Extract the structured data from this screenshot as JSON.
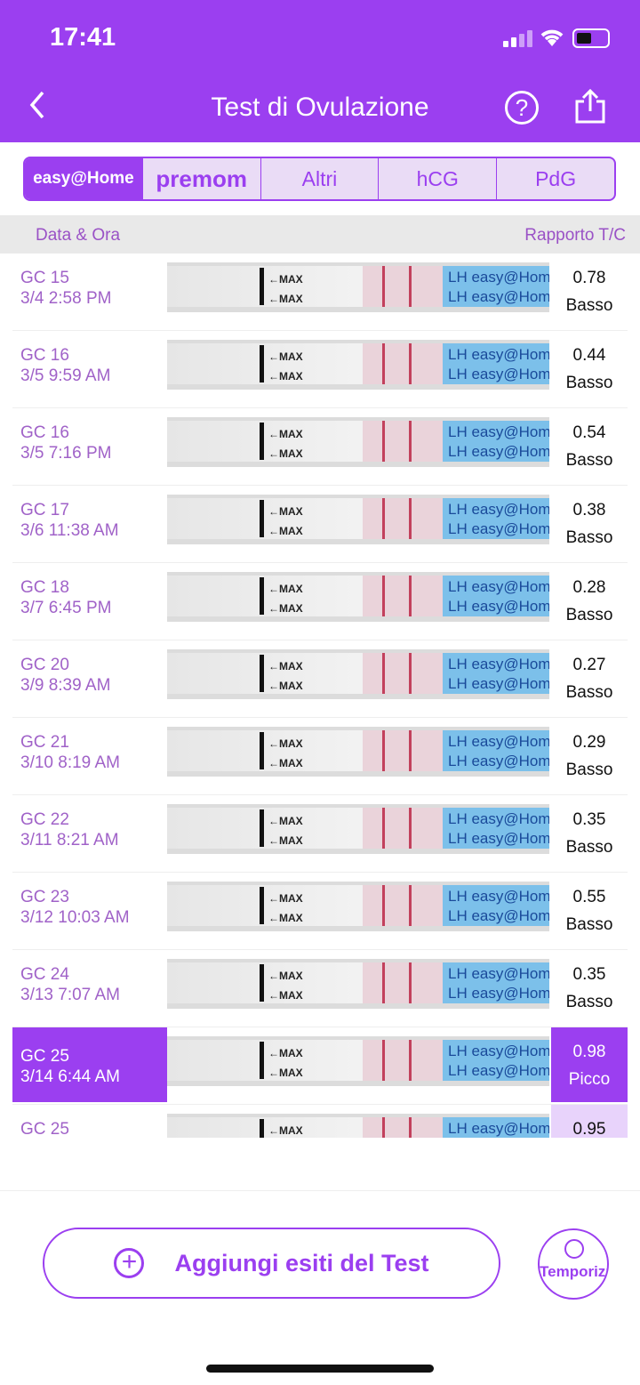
{
  "status_bar": {
    "time": "17:41"
  },
  "header": {
    "title": "Test di Ovulazione"
  },
  "tabs": [
    {
      "label": "easy@Home",
      "active": true
    },
    {
      "label": "premom",
      "active": false
    },
    {
      "label": "Altri",
      "active": false
    },
    {
      "label": "hCG",
      "active": false
    },
    {
      "label": "PdG",
      "active": false
    }
  ],
  "columns": {
    "date": "Data & Ora",
    "ratio": "Rapporto T/C"
  },
  "strip_labels": {
    "max": "←MAX",
    "lh": "LH easy@Home LH"
  },
  "rows": [
    {
      "cycle_day": "GC 15",
      "datetime": "3/4 2:58 PM",
      "ratio": "0.78",
      "level": "Basso"
    },
    {
      "cycle_day": "GC 16",
      "datetime": "3/5 9:59 AM",
      "ratio": "0.44",
      "level": "Basso"
    },
    {
      "cycle_day": "GC 16",
      "datetime": "3/5 7:16 PM",
      "ratio": "0.54",
      "level": "Basso"
    },
    {
      "cycle_day": "GC 17",
      "datetime": "3/6 11:38 AM",
      "ratio": "0.38",
      "level": "Basso"
    },
    {
      "cycle_day": "GC 18",
      "datetime": "3/7 6:45 PM",
      "ratio": "0.28",
      "level": "Basso"
    },
    {
      "cycle_day": "GC 20",
      "datetime": "3/9 8:39 AM",
      "ratio": "0.27",
      "level": "Basso"
    },
    {
      "cycle_day": "GC 21",
      "datetime": "3/10 8:19 AM",
      "ratio": "0.29",
      "level": "Basso"
    },
    {
      "cycle_day": "GC 22",
      "datetime": "3/11 8:21 AM",
      "ratio": "0.35",
      "level": "Basso"
    },
    {
      "cycle_day": "GC 23",
      "datetime": "3/12 10:03 AM",
      "ratio": "0.55",
      "level": "Basso"
    },
    {
      "cycle_day": "GC 24",
      "datetime": "3/13 7:07 AM",
      "ratio": "0.35",
      "level": "Basso"
    },
    {
      "cycle_day": "GC 25",
      "datetime": "3/14 6:44 AM",
      "ratio": "0.98",
      "level": "Picco",
      "selected": true
    },
    {
      "cycle_day": "GC 25",
      "ratio": "0.95"
    }
  ],
  "actions": {
    "add_label": "Aggiungi esiti del Test",
    "timer_label": "Temporizzatore"
  },
  "colors": {
    "accent": "#9b3ff0",
    "date_text": "#a062c8",
    "peak_light": "#e8d3fb"
  }
}
